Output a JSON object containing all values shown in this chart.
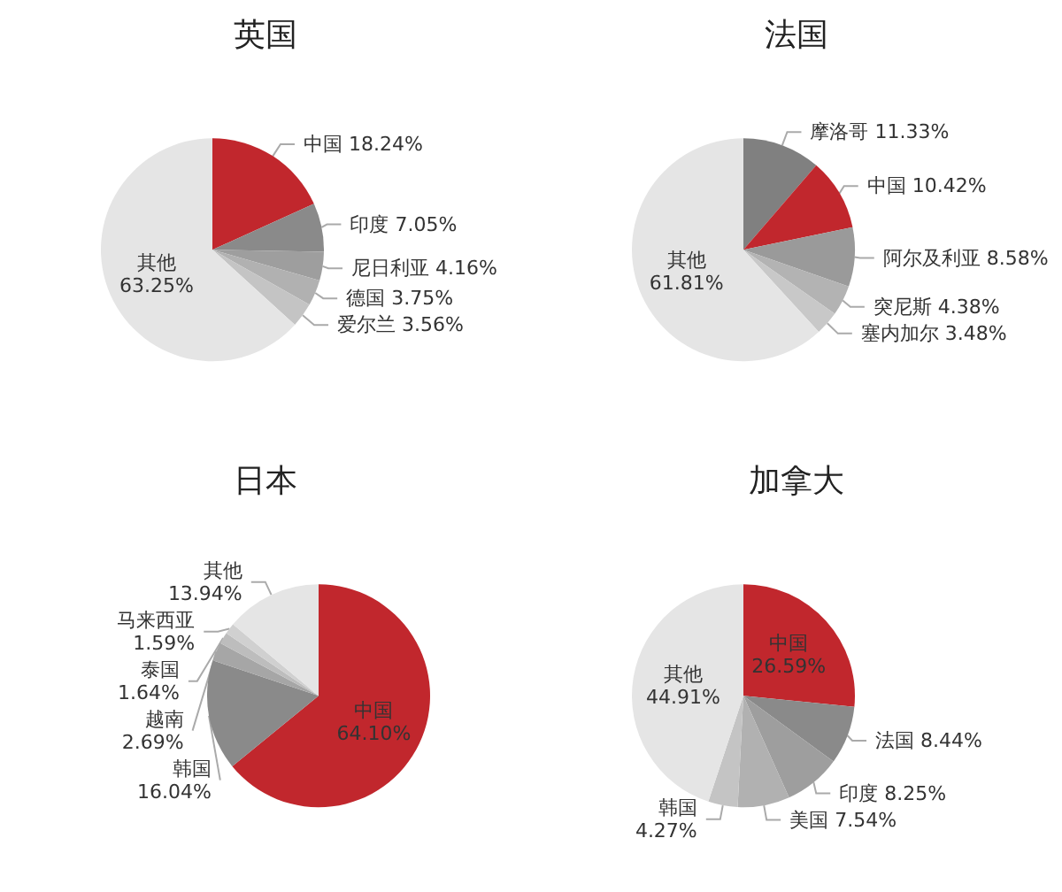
{
  "chart_data": [
    {
      "type": "pie",
      "title": "英国",
      "categories": [
        "中国",
        "印度",
        "尼日利亚",
        "德国",
        "爱尔兰",
        "其他"
      ],
      "values": [
        18.24,
        7.05,
        4.16,
        3.75,
        3.56,
        63.25
      ],
      "value_labels": [
        "18.24%",
        "7.05%",
        "4.16%",
        "3.75%",
        "3.56%",
        "63.25%"
      ],
      "colors": [
        "#c1272d",
        "#8a8a8a",
        "#9e9e9e",
        "#b1b1b1",
        "#c4c4c4",
        "#e5e5e5"
      ]
    },
    {
      "type": "pie",
      "title": "法国",
      "categories": [
        "摩洛哥",
        "中国",
        "阿尔及利亚",
        "突尼斯",
        "塞内加尔",
        "其他"
      ],
      "values": [
        11.33,
        10.42,
        8.58,
        4.38,
        3.48,
        61.81
      ],
      "value_labels": [
        "11.33%",
        "10.42%",
        "8.58%",
        "4.38%",
        "3.48%",
        "61.81%"
      ],
      "colors": [
        "#808080",
        "#c1272d",
        "#9a9a9a",
        "#b3b3b3",
        "#c8c8c8",
        "#e5e5e5"
      ]
    },
    {
      "type": "pie",
      "title": "日本",
      "categories": [
        "中国",
        "韩国",
        "越南",
        "泰国",
        "马来西亚",
        "其他"
      ],
      "values": [
        64.1,
        16.04,
        2.69,
        1.64,
        1.59,
        13.94
      ],
      "value_labels": [
        "64.10%",
        "16.04%",
        "2.69%",
        "1.64%",
        "1.59%",
        "13.94%"
      ],
      "colors": [
        "#c1272d",
        "#8a8a8a",
        "#a6a6a6",
        "#bdbdbd",
        "#d0d0d0",
        "#e5e5e5"
      ]
    },
    {
      "type": "pie",
      "title": "加拿大",
      "categories": [
        "中国",
        "法国",
        "印度",
        "美国",
        "韩国",
        "其他"
      ],
      "values": [
        26.59,
        8.44,
        8.25,
        7.54,
        4.27,
        44.91
      ],
      "value_labels": [
        "26.59%",
        "8.44%",
        "8.25%",
        "7.54%",
        "4.27%",
        "44.91%"
      ],
      "colors": [
        "#c1272d",
        "#8a8a8a",
        "#9e9e9e",
        "#b1b1b1",
        "#c4c4c4",
        "#e5e5e5"
      ]
    }
  ]
}
